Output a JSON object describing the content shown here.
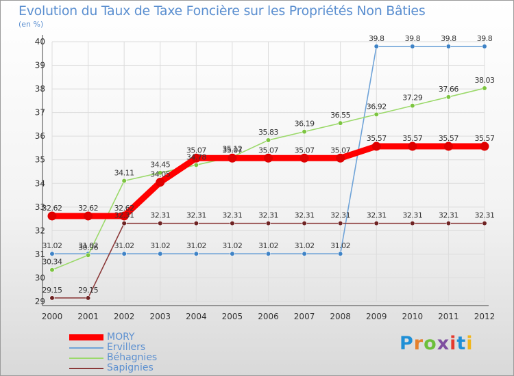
{
  "title": "Evolution du Taux de Taxe Foncière sur les Propriétés Non Bâties",
  "subtitle": "(en %)",
  "brand": "Proxiti",
  "colors": {
    "brand_letters": [
      "#1f8fd6",
      "#e5802d",
      "#6cbf3a",
      "#7e4da0",
      "#e53a2e",
      "#1f8fd6",
      "#f0b51a"
    ],
    "axis_text": "#333333",
    "grid": "#dcdcdc"
  },
  "chart_data": {
    "type": "line",
    "title": "Evolution du Taux de Taxe Foncière sur les Propriétés Non Bâties",
    "ylabel": "(en %)",
    "xlabel": "",
    "ylim": [
      29,
      40
    ],
    "yticks": [
      "29",
      "30",
      "31",
      "32",
      "33",
      "34",
      "35",
      "36",
      "37",
      "38",
      "39",
      "40"
    ],
    "x": [
      "2000",
      "2001",
      "2002",
      "2003",
      "2004",
      "2005",
      "2006",
      "2007",
      "2008",
      "2009",
      "2010",
      "2011",
      "2012"
    ],
    "grid": true,
    "legend_position": "bottom-left",
    "series": [
      {
        "name": "MORY",
        "color": "#ff0000",
        "line_style": "thick",
        "values": [
          32.62,
          32.62,
          32.62,
          34.05,
          35.07,
          35.07,
          35.07,
          35.07,
          35.07,
          35.57,
          35.57,
          35.57,
          35.57
        ],
        "labels": [
          "32.62",
          "32.62",
          "32.62",
          "34.05",
          "35.07",
          "35.07",
          "35.07",
          "35.07",
          "35.07",
          "35.57",
          "35.57",
          "35.57",
          "35.57"
        ]
      },
      {
        "name": "Ervillers",
        "color": "#6fa3d8",
        "marker_color": "#3f83c6",
        "line_style": "thin",
        "values": [
          31.02,
          31.02,
          31.02,
          31.02,
          31.02,
          31.02,
          31.02,
          31.02,
          31.02,
          39.8,
          39.8,
          39.8,
          39.8
        ],
        "labels": [
          "31.02",
          "31.02",
          "31.02",
          "31.02",
          "31.02",
          "31.02",
          "31.02",
          "31.02",
          "31.02",
          "39.8",
          "39.8",
          "39.8",
          "39.8"
        ]
      },
      {
        "name": "Béhagnies",
        "color": "#9bd96a",
        "marker_color": "#7cc440",
        "line_style": "thin",
        "values": [
          30.34,
          30.96,
          34.11,
          34.45,
          34.78,
          35.12,
          35.83,
          36.19,
          36.55,
          36.92,
          37.29,
          37.66,
          38.03
        ],
        "labels": [
          "30.34",
          "30.96",
          "34.11",
          "34.45",
          "34.78",
          "35.12",
          "35.83",
          "36.19",
          "36.55",
          "36.92",
          "37.29",
          "37.66",
          "38.03"
        ]
      },
      {
        "name": "Sapignies",
        "color": "#8b3a3a",
        "marker_color": "#6e2323",
        "line_style": "thin",
        "values": [
          29.15,
          29.15,
          32.31,
          32.31,
          32.31,
          32.31,
          32.31,
          32.31,
          32.31,
          32.31,
          32.31,
          32.31,
          32.31
        ],
        "labels": [
          "29.15",
          "29.15",
          "32.31",
          "32.31",
          "32.31",
          "32.31",
          "32.31",
          "32.31",
          "32.31",
          "32.31",
          "32.31",
          "32.31",
          "32.31"
        ]
      }
    ]
  }
}
